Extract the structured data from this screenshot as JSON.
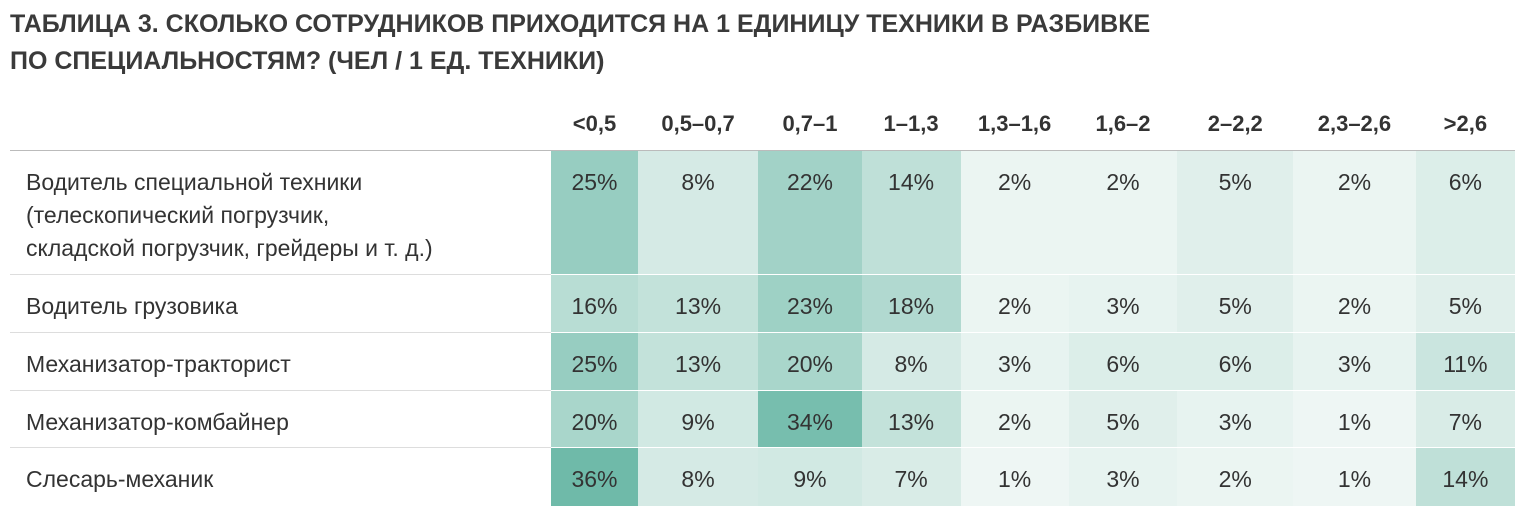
{
  "title": {
    "label": "ТАБЛИЦА 3.",
    "lines": [
      "СКОЛЬКО СОТРУДНИКОВ ПРИХОДИТСЯ НА 1 ЕДИНИЦУ ТЕХНИКИ В РАЗБИВКЕ",
      "ПО СПЕЦИАЛЬНОСТЯМ? (ЧЕЛ / 1 ЕД. ТЕХНИКИ)"
    ]
  },
  "table": {
    "columns": [
      "<0,5",
      "0,5–0,7",
      "0,7–1",
      "1–1,3",
      "1,3–1,6",
      "1,6–2",
      "2–2,2",
      "2,3–2,6",
      ">2,6"
    ],
    "rows": [
      {
        "label": [
          "Водитель специальной техники",
          "(телескопический погрузчик,",
          "складской погрузчик, грейдеры и т. д.)"
        ],
        "cells": [
          "25%",
          "8%",
          "22%",
          "14%",
          "2%",
          "2%",
          "5%",
          "2%",
          "6%"
        ]
      },
      {
        "label": [
          "Водитель грузовика"
        ],
        "cells": [
          "16%",
          "13%",
          "23%",
          "18%",
          "2%",
          "3%",
          "5%",
          "2%",
          "5%"
        ]
      },
      {
        "label": [
          "Механизатор-тракторист"
        ],
        "cells": [
          "25%",
          "13%",
          "20%",
          "8%",
          "3%",
          "6%",
          "6%",
          "3%",
          "11%"
        ]
      },
      {
        "label": [
          "Механизатор-комбайнер"
        ],
        "cells": [
          "20%",
          "9%",
          "34%",
          "13%",
          "2%",
          "5%",
          "3%",
          "1%",
          "7%"
        ]
      },
      {
        "label": [
          "Слесарь-механик"
        ],
        "cells": [
          "36%",
          "8%",
          "9%",
          "7%",
          "1%",
          "3%",
          "2%",
          "1%",
          "14%"
        ]
      }
    ]
  }
}
